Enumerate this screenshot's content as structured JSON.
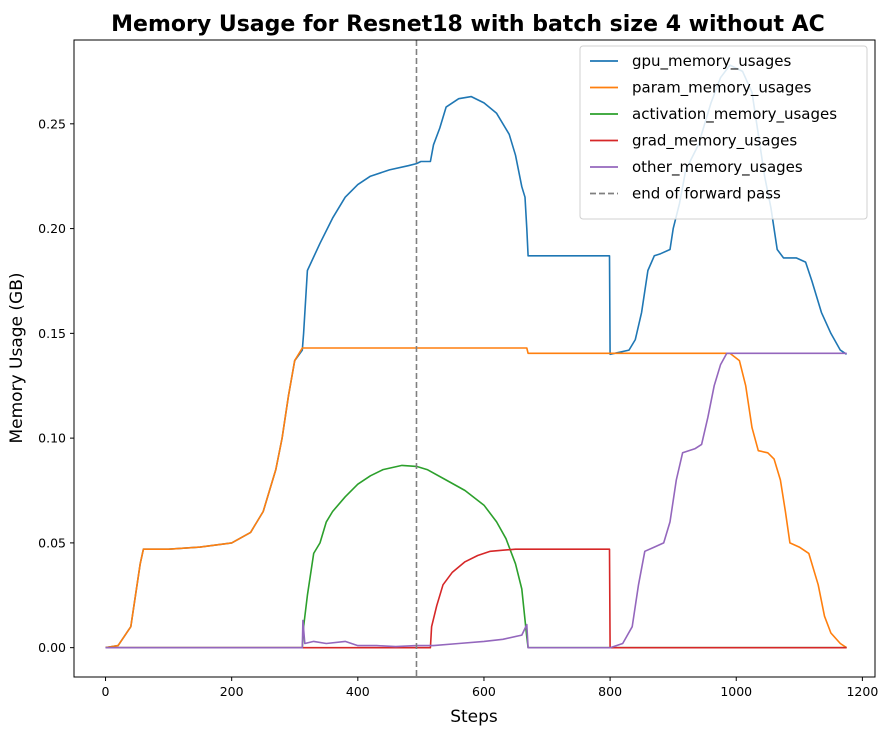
{
  "chart_data": {
    "type": "line",
    "title": "Memory Usage for Resnet18 with batch size 4 without AC",
    "xlabel": "Steps",
    "ylabel": "Memory Usage (GB)",
    "xlim": [
      -50,
      1220
    ],
    "ylim": [
      -0.014,
      0.29
    ],
    "xticks": [
      0,
      200,
      400,
      600,
      800,
      1000,
      1200
    ],
    "yticks": [
      0.0,
      0.05,
      0.1,
      0.15,
      0.2,
      0.25
    ],
    "ytick_labels": [
      "0.00",
      "0.05",
      "0.10",
      "0.15",
      "0.20",
      "0.25"
    ],
    "grid": false,
    "legend_position": "top-right",
    "vline": {
      "x": 493,
      "name": "end of forward pass",
      "color": "#808080",
      "style": "dashed"
    },
    "series": [
      {
        "name": "gpu_memory_usages",
        "color": "#1f77b4",
        "points": [
          [
            0,
            0
          ],
          [
            20,
            0.001
          ],
          [
            40,
            0.01
          ],
          [
            55,
            0.04
          ],
          [
            60,
            0.047
          ],
          [
            100,
            0.047
          ],
          [
            150,
            0.048
          ],
          [
            200,
            0.05
          ],
          [
            230,
            0.055
          ],
          [
            250,
            0.065
          ],
          [
            270,
            0.085
          ],
          [
            280,
            0.1
          ],
          [
            290,
            0.12
          ],
          [
            300,
            0.137
          ],
          [
            312,
            0.142
          ],
          [
            314,
            0.15
          ],
          [
            320,
            0.18
          ],
          [
            340,
            0.193
          ],
          [
            360,
            0.205
          ],
          [
            380,
            0.215
          ],
          [
            400,
            0.221
          ],
          [
            420,
            0.225
          ],
          [
            450,
            0.228
          ],
          [
            480,
            0.23
          ],
          [
            493,
            0.231
          ],
          [
            500,
            0.232
          ],
          [
            515,
            0.232
          ],
          [
            520,
            0.24
          ],
          [
            530,
            0.248
          ],
          [
            540,
            0.258
          ],
          [
            560,
            0.262
          ],
          [
            580,
            0.263
          ],
          [
            600,
            0.26
          ],
          [
            620,
            0.255
          ],
          [
            640,
            0.245
          ],
          [
            650,
            0.235
          ],
          [
            660,
            0.22
          ],
          [
            665,
            0.215
          ],
          [
            668,
            0.2
          ],
          [
            670,
            0.187
          ],
          [
            700,
            0.187
          ],
          [
            799,
            0.187
          ],
          [
            800,
            0.14
          ],
          [
            830,
            0.142
          ],
          [
            840,
            0.147
          ],
          [
            850,
            0.16
          ],
          [
            860,
            0.18
          ],
          [
            870,
            0.187
          ],
          [
            880,
            0.188
          ],
          [
            895,
            0.19
          ],
          [
            900,
            0.2
          ],
          [
            910,
            0.212
          ],
          [
            920,
            0.228
          ],
          [
            940,
            0.24
          ],
          [
            960,
            0.26
          ],
          [
            975,
            0.272
          ],
          [
            990,
            0.278
          ],
          [
            1010,
            0.275
          ],
          [
            1025,
            0.265
          ],
          [
            1035,
            0.245
          ],
          [
            1045,
            0.225
          ],
          [
            1055,
            0.21
          ],
          [
            1065,
            0.19
          ],
          [
            1075,
            0.186
          ],
          [
            1095,
            0.186
          ],
          [
            1110,
            0.184
          ],
          [
            1120,
            0.175
          ],
          [
            1135,
            0.16
          ],
          [
            1150,
            0.15
          ],
          [
            1165,
            0.142
          ],
          [
            1175,
            0.14
          ]
        ]
      },
      {
        "name": "param_memory_usages",
        "color": "#ff7f0e",
        "points": [
          [
            0,
            0
          ],
          [
            20,
            0.001
          ],
          [
            40,
            0.01
          ],
          [
            55,
            0.04
          ],
          [
            60,
            0.047
          ],
          [
            100,
            0.047
          ],
          [
            150,
            0.048
          ],
          [
            200,
            0.05
          ],
          [
            230,
            0.055
          ],
          [
            250,
            0.065
          ],
          [
            270,
            0.085
          ],
          [
            280,
            0.1
          ],
          [
            290,
            0.12
          ],
          [
            300,
            0.137
          ],
          [
            312,
            0.143
          ],
          [
            400,
            0.143
          ],
          [
            500,
            0.143
          ],
          [
            668,
            0.143
          ],
          [
            670,
            0.1405
          ],
          [
            800,
            0.1405
          ],
          [
            900,
            0.1405
          ],
          [
            990,
            0.1405
          ],
          [
            1005,
            0.137
          ],
          [
            1015,
            0.125
          ],
          [
            1025,
            0.105
          ],
          [
            1035,
            0.094
          ],
          [
            1050,
            0.093
          ],
          [
            1060,
            0.09
          ],
          [
            1070,
            0.08
          ],
          [
            1078,
            0.065
          ],
          [
            1085,
            0.05
          ],
          [
            1100,
            0.048
          ],
          [
            1115,
            0.045
          ],
          [
            1130,
            0.03
          ],
          [
            1140,
            0.015
          ],
          [
            1150,
            0.007
          ],
          [
            1165,
            0.002
          ],
          [
            1175,
            0
          ]
        ]
      },
      {
        "name": "activation_memory_usages",
        "color": "#2ca02c",
        "points": [
          [
            0,
            0
          ],
          [
            312,
            0
          ],
          [
            314,
            0.01
          ],
          [
            320,
            0.025
          ],
          [
            330,
            0.045
          ],
          [
            340,
            0.05
          ],
          [
            350,
            0.06
          ],
          [
            360,
            0.065
          ],
          [
            380,
            0.072
          ],
          [
            400,
            0.078
          ],
          [
            420,
            0.082
          ],
          [
            440,
            0.085
          ],
          [
            470,
            0.087
          ],
          [
            493,
            0.0865
          ],
          [
            510,
            0.085
          ],
          [
            540,
            0.08
          ],
          [
            570,
            0.075
          ],
          [
            600,
            0.068
          ],
          [
            620,
            0.06
          ],
          [
            635,
            0.052
          ],
          [
            650,
            0.04
          ],
          [
            660,
            0.028
          ],
          [
            668,
            0.005
          ],
          [
            670,
            0
          ],
          [
            800,
            0
          ],
          [
            1175,
            0
          ]
        ]
      },
      {
        "name": "grad_memory_usages",
        "color": "#d62728",
        "points": [
          [
            0,
            0
          ],
          [
            515,
            0
          ],
          [
            517,
            0.01
          ],
          [
            525,
            0.02
          ],
          [
            535,
            0.03
          ],
          [
            550,
            0.036
          ],
          [
            570,
            0.041
          ],
          [
            590,
            0.044
          ],
          [
            610,
            0.046
          ],
          [
            630,
            0.0465
          ],
          [
            650,
            0.047
          ],
          [
            700,
            0.047
          ],
          [
            799,
            0.047
          ],
          [
            800,
            0
          ],
          [
            1175,
            0
          ]
        ]
      },
      {
        "name": "other_memory_usages",
        "color": "#9467bd",
        "points": [
          [
            0,
            0
          ],
          [
            312,
            0
          ],
          [
            313,
            0.013
          ],
          [
            316,
            0.002
          ],
          [
            330,
            0.003
          ],
          [
            350,
            0.002
          ],
          [
            380,
            0.003
          ],
          [
            400,
            0.001
          ],
          [
            430,
            0.001
          ],
          [
            460,
            0.0005
          ],
          [
            493,
            0.001
          ],
          [
            520,
            0.001
          ],
          [
            560,
            0.002
          ],
          [
            600,
            0.003
          ],
          [
            630,
            0.004
          ],
          [
            660,
            0.006
          ],
          [
            668,
            0.011
          ],
          [
            670,
            0
          ],
          [
            800,
            0
          ],
          [
            820,
            0.002
          ],
          [
            835,
            0.01
          ],
          [
            845,
            0.03
          ],
          [
            855,
            0.046
          ],
          [
            870,
            0.048
          ],
          [
            885,
            0.05
          ],
          [
            895,
            0.06
          ],
          [
            905,
            0.08
          ],
          [
            915,
            0.093
          ],
          [
            935,
            0.095
          ],
          [
            945,
            0.097
          ],
          [
            955,
            0.11
          ],
          [
            965,
            0.125
          ],
          [
            975,
            0.135
          ],
          [
            985,
            0.1405
          ],
          [
            1000,
            0.1405
          ],
          [
            1100,
            0.1405
          ],
          [
            1175,
            0.1405
          ]
        ]
      }
    ]
  }
}
